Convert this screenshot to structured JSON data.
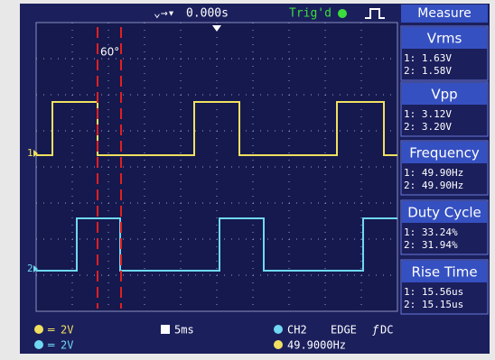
{
  "header": {
    "time_offset": "0.000s",
    "trigger_status": "Trig'd",
    "menu_title": "Measure"
  },
  "annotation": "60°",
  "channel_markers": [
    "1",
    "2"
  ],
  "measurements": [
    {
      "title": "Vrms",
      "ch1": "1: 1.63V",
      "ch2": "2: 1.58V"
    },
    {
      "title": "Vpp",
      "ch1": "1: 3.12V",
      "ch2": "2: 3.20V"
    },
    {
      "title": "Frequency",
      "ch1": "1: 49.90Hz",
      "ch2": "2: 49.90Hz"
    },
    {
      "title": "Duty Cycle",
      "ch1": "1: 33.24%",
      "ch2": "2: 31.94%"
    },
    {
      "title": "Rise Time",
      "ch1": "1: 15.56us",
      "ch2": "2: 15.15us"
    }
  ],
  "footer": {
    "ch1_scale": "2V",
    "ch2_scale": "2V",
    "timebase": "5ms",
    "trigger_source": "CH2",
    "trigger_type": "EDGE",
    "coupling": "DC",
    "trigger_frequency": "49.9000Hz"
  }
}
